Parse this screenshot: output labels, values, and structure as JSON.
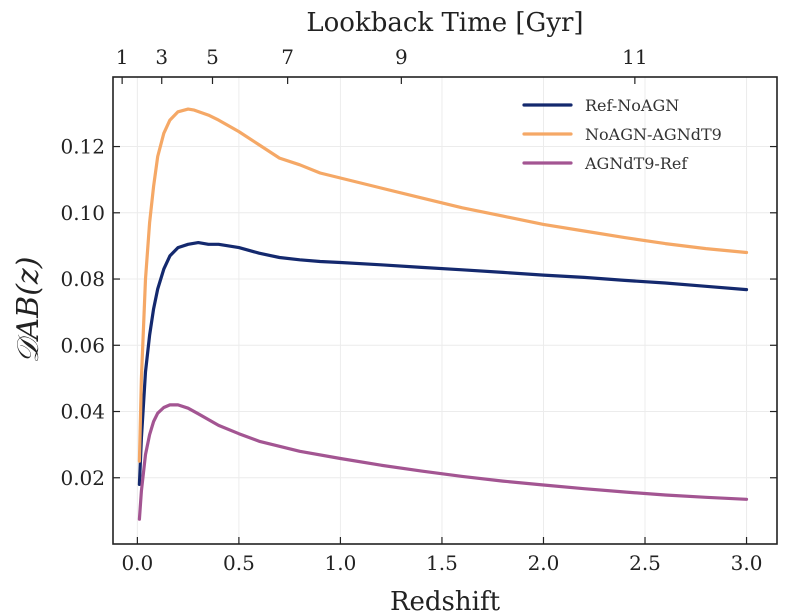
{
  "chart_data": {
    "type": "line",
    "xlabel": "Redshift",
    "ylabel": "𝒟AB(z)",
    "top_xlabel": "Lookback Time [Gyr]",
    "xlim": [
      -0.12,
      3.15
    ],
    "ylim": [
      0.0,
      0.141
    ],
    "x_ticks": [
      0.0,
      0.5,
      1.0,
      1.5,
      2.0,
      2.5,
      3.0
    ],
    "x_tick_labels": [
      "0.0",
      "0.5",
      "1.0",
      "1.5",
      "2.0",
      "2.5",
      "3.0"
    ],
    "y_ticks": [
      0.02,
      0.04,
      0.06,
      0.08,
      0.1,
      0.12
    ],
    "y_tick_labels": [
      "0.02",
      "0.04",
      "0.06",
      "0.08",
      "0.10",
      "0.12"
    ],
    "top_ticks": [
      {
        "label": "1",
        "z": -0.075
      },
      {
        "label": "3",
        "z": 0.12
      },
      {
        "label": "5",
        "z": 0.37
      },
      {
        "label": "7",
        "z": 0.74
      },
      {
        "label": "9",
        "z": 1.3
      },
      {
        "label": "11",
        "z": 2.45
      }
    ],
    "grid": true,
    "legend_position": "top-right",
    "series": [
      {
        "name": "Ref-NoAGN",
        "color": "#14296e",
        "points": [
          [
            0.01,
            0.018
          ],
          [
            0.02,
            0.032
          ],
          [
            0.04,
            0.052
          ],
          [
            0.06,
            0.063
          ],
          [
            0.08,
            0.071
          ],
          [
            0.1,
            0.077
          ],
          [
            0.13,
            0.083
          ],
          [
            0.16,
            0.087
          ],
          [
            0.2,
            0.0895
          ],
          [
            0.25,
            0.0905
          ],
          [
            0.3,
            0.091
          ],
          [
            0.35,
            0.0905
          ],
          [
            0.4,
            0.0905
          ],
          [
            0.5,
            0.0895
          ],
          [
            0.6,
            0.0878
          ],
          [
            0.7,
            0.0865
          ],
          [
            0.8,
            0.0858
          ],
          [
            0.9,
            0.0853
          ],
          [
            1.0,
            0.085
          ],
          [
            1.2,
            0.0843
          ],
          [
            1.4,
            0.0835
          ],
          [
            1.6,
            0.0828
          ],
          [
            1.8,
            0.082
          ],
          [
            2.0,
            0.0812
          ],
          [
            2.2,
            0.0805
          ],
          [
            2.4,
            0.0796
          ],
          [
            2.6,
            0.0788
          ],
          [
            2.8,
            0.0778
          ],
          [
            3.0,
            0.0768
          ]
        ]
      },
      {
        "name": "NoAGN-AGNdT9",
        "color": "#f5a866",
        "points": [
          [
            0.01,
            0.025
          ],
          [
            0.02,
            0.05
          ],
          [
            0.04,
            0.08
          ],
          [
            0.06,
            0.097
          ],
          [
            0.08,
            0.108
          ],
          [
            0.1,
            0.117
          ],
          [
            0.13,
            0.124
          ],
          [
            0.16,
            0.128
          ],
          [
            0.2,
            0.1305
          ],
          [
            0.25,
            0.1313
          ],
          [
            0.28,
            0.131
          ],
          [
            0.35,
            0.1295
          ],
          [
            0.4,
            0.128
          ],
          [
            0.5,
            0.1245
          ],
          [
            0.6,
            0.1205
          ],
          [
            0.7,
            0.1165
          ],
          [
            0.8,
            0.1145
          ],
          [
            0.9,
            0.112
          ],
          [
            1.0,
            0.1105
          ],
          [
            1.2,
            0.1075
          ],
          [
            1.4,
            0.1045
          ],
          [
            1.6,
            0.1015
          ],
          [
            1.8,
            0.099
          ],
          [
            2.0,
            0.0965
          ],
          [
            2.2,
            0.0945
          ],
          [
            2.4,
            0.0925
          ],
          [
            2.6,
            0.0907
          ],
          [
            2.8,
            0.0892
          ],
          [
            3.0,
            0.088
          ]
        ]
      },
      {
        "name": "AGNdT9-Ref",
        "color": "#a35592",
        "points": [
          [
            0.01,
            0.0075
          ],
          [
            0.02,
            0.016
          ],
          [
            0.04,
            0.027
          ],
          [
            0.06,
            0.033
          ],
          [
            0.08,
            0.037
          ],
          [
            0.1,
            0.0395
          ],
          [
            0.13,
            0.0412
          ],
          [
            0.16,
            0.042
          ],
          [
            0.2,
            0.042
          ],
          [
            0.25,
            0.041
          ],
          [
            0.3,
            0.0393
          ],
          [
            0.4,
            0.0358
          ],
          [
            0.5,
            0.0333
          ],
          [
            0.6,
            0.031
          ],
          [
            0.7,
            0.0295
          ],
          [
            0.8,
            0.028
          ],
          [
            1.0,
            0.0258
          ],
          [
            1.2,
            0.0238
          ],
          [
            1.4,
            0.022
          ],
          [
            1.6,
            0.0204
          ],
          [
            1.8,
            0.019
          ],
          [
            2.0,
            0.0178
          ],
          [
            2.2,
            0.0167
          ],
          [
            2.4,
            0.0157
          ],
          [
            2.6,
            0.0148
          ],
          [
            2.8,
            0.0141
          ],
          [
            3.0,
            0.0135
          ]
        ]
      }
    ]
  }
}
